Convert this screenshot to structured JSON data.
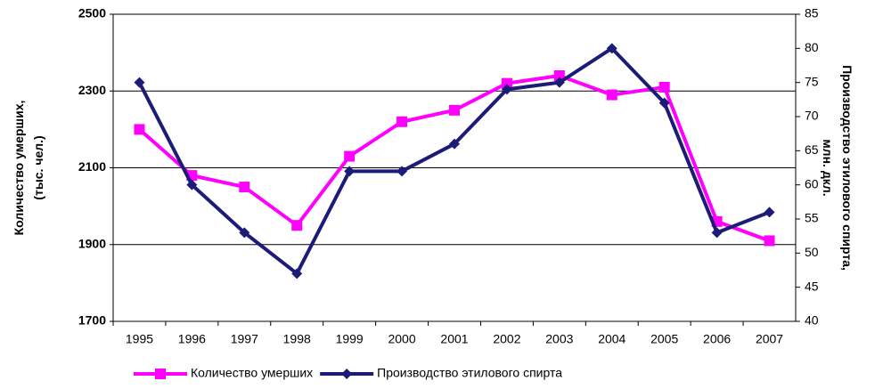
{
  "chart_data": {
    "type": "line",
    "ylabel": [
      "Количество умерших,",
      "(тыс. чел.)"
    ],
    "y2label": [
      "Производство этилового спирта,",
      "млн. дкл."
    ],
    "categories": [
      "1995",
      "1996",
      "1997",
      "1998",
      "1999",
      "2000",
      "2001",
      "2002",
      "2003",
      "2004",
      "2005",
      "2006",
      "2007"
    ],
    "series": [
      {
        "name": "Количество умерших",
        "color": "#ff00ff",
        "marker": "square",
        "values": [
          2200,
          2080,
          2050,
          1950,
          2130,
          2220,
          2250,
          2320,
          2340,
          2290,
          2310,
          1960,
          1910
        ]
      },
      {
        "name": "Производство этилового спирта",
        "color": "#1c1c78",
        "marker": "diamond",
        "axis": "y2",
        "values": [
          75,
          60,
          53,
          47,
          62,
          62,
          66,
          74,
          75,
          80,
          72,
          53,
          56
        ]
      }
    ],
    "ylim": [
      1700,
      2500
    ],
    "yticks": [
      1700,
      1900,
      2100,
      2300,
      2500
    ],
    "y2lim": [
      40,
      85
    ],
    "y2ticks": [
      40,
      45,
      50,
      55,
      60,
      65,
      70,
      75,
      80,
      85
    ],
    "grid": true,
    "legend": "bottom"
  }
}
